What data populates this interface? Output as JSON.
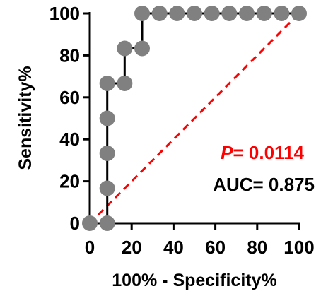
{
  "chart_data": {
    "type": "line",
    "title": "",
    "xlabel": "100% - Specificity%",
    "ylabel": "Sensitivity%",
    "xlim": [
      0,
      100
    ],
    "ylim": [
      0,
      100
    ],
    "xticks": [
      "0",
      "20",
      "40",
      "60",
      "80",
      "100"
    ],
    "yticks": [
      "0",
      "20",
      "40",
      "60",
      "80",
      "100"
    ],
    "grid": false,
    "series": [
      {
        "kind": "roc-step",
        "color": "#000000",
        "marker_color": "#808080",
        "points": [
          {
            "x": 0,
            "y": 0
          },
          {
            "x": 8.33,
            "y": 0
          },
          {
            "x": 8.33,
            "y": 16.67
          },
          {
            "x": 8.33,
            "y": 33.33
          },
          {
            "x": 8.33,
            "y": 50
          },
          {
            "x": 8.33,
            "y": 66.67
          },
          {
            "x": 16.67,
            "y": 66.67
          },
          {
            "x": 16.67,
            "y": 83.33
          },
          {
            "x": 25,
            "y": 83.33
          },
          {
            "x": 25,
            "y": 100
          },
          {
            "x": 33.33,
            "y": 100
          },
          {
            "x": 41.67,
            "y": 100
          },
          {
            "x": 50,
            "y": 100
          },
          {
            "x": 58.33,
            "y": 100
          },
          {
            "x": 66.67,
            "y": 100
          },
          {
            "x": 75,
            "y": 100
          },
          {
            "x": 83.33,
            "y": 100
          },
          {
            "x": 91.67,
            "y": 100
          },
          {
            "x": 100,
            "y": 100
          }
        ]
      },
      {
        "kind": "reference-diagonal",
        "color": "#ff0000",
        "style": "dashed",
        "points": [
          {
            "x": 0,
            "y": 0
          },
          {
            "x": 100,
            "y": 100
          }
        ]
      }
    ],
    "annotations": {
      "p_letter": "P",
      "p_rest": "= 0.0114",
      "p_color": "#ff0000",
      "auc": "AUC= 0.875",
      "auc_color": "#000000"
    }
  }
}
